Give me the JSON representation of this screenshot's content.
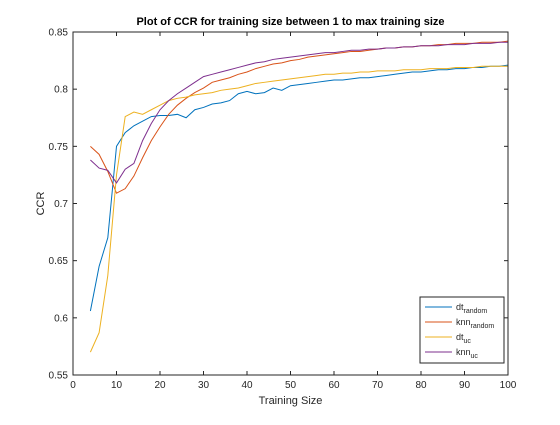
{
  "chart_data": {
    "type": "line",
    "title": "Plot of CCR for training size between 1 to max training size",
    "xlabel": "Training Size",
    "ylabel": "CCR",
    "xlim": [
      0,
      100
    ],
    "ylim": [
      0.55,
      0.85
    ],
    "xticks": [
      0,
      10,
      20,
      30,
      40,
      50,
      60,
      70,
      80,
      90,
      100
    ],
    "yticks": [
      0.55,
      0.6,
      0.65,
      0.7,
      0.75,
      0.8,
      0.85
    ],
    "grid": false,
    "legend_position": "bottom-right",
    "x": [
      4,
      6,
      8,
      10,
      12,
      14,
      16,
      18,
      20,
      22,
      24,
      26,
      28,
      30,
      32,
      34,
      36,
      38,
      40,
      42,
      44,
      46,
      48,
      50,
      52,
      54,
      56,
      58,
      60,
      62,
      64,
      66,
      68,
      70,
      72,
      74,
      76,
      78,
      80,
      82,
      84,
      86,
      88,
      90,
      92,
      94,
      96,
      98,
      100
    ],
    "series": [
      {
        "name": "dt",
        "subscript": "random",
        "color": "#0072BD",
        "values": [
          0.606,
          0.645,
          0.67,
          0.75,
          0.762,
          0.768,
          0.772,
          0.776,
          0.777,
          0.777,
          0.778,
          0.775,
          0.782,
          0.784,
          0.787,
          0.788,
          0.79,
          0.796,
          0.798,
          0.796,
          0.797,
          0.801,
          0.799,
          0.803,
          0.804,
          0.805,
          0.806,
          0.807,
          0.808,
          0.808,
          0.809,
          0.81,
          0.81,
          0.811,
          0.812,
          0.813,
          0.814,
          0.815,
          0.815,
          0.816,
          0.817,
          0.817,
          0.818,
          0.818,
          0.819,
          0.819,
          0.82,
          0.82,
          0.821
        ]
      },
      {
        "name": "knn",
        "subscript": "random",
        "color": "#D95319",
        "values": [
          0.75,
          0.743,
          0.728,
          0.709,
          0.713,
          0.724,
          0.74,
          0.755,
          0.767,
          0.778,
          0.786,
          0.792,
          0.797,
          0.801,
          0.806,
          0.808,
          0.81,
          0.813,
          0.815,
          0.818,
          0.82,
          0.822,
          0.823,
          0.825,
          0.826,
          0.828,
          0.829,
          0.83,
          0.831,
          0.832,
          0.833,
          0.833,
          0.834,
          0.835,
          0.836,
          0.836,
          0.837,
          0.837,
          0.838,
          0.838,
          0.839,
          0.839,
          0.84,
          0.84,
          0.84,
          0.841,
          0.841,
          0.841,
          0.842
        ]
      },
      {
        "name": "dt",
        "subscript": "uc",
        "color": "#EDB120",
        "values": [
          0.57,
          0.587,
          0.637,
          0.725,
          0.776,
          0.78,
          0.778,
          0.782,
          0.786,
          0.79,
          0.792,
          0.793,
          0.795,
          0.796,
          0.797,
          0.799,
          0.8,
          0.801,
          0.803,
          0.805,
          0.806,
          0.807,
          0.808,
          0.809,
          0.81,
          0.811,
          0.812,
          0.813,
          0.813,
          0.814,
          0.814,
          0.815,
          0.815,
          0.816,
          0.816,
          0.816,
          0.817,
          0.817,
          0.817,
          0.818,
          0.818,
          0.818,
          0.819,
          0.819,
          0.819,
          0.82,
          0.82,
          0.82,
          0.82
        ]
      },
      {
        "name": "knn",
        "subscript": "uc",
        "color": "#7E2F8E",
        "values": [
          0.738,
          0.731,
          0.729,
          0.718,
          0.73,
          0.735,
          0.755,
          0.77,
          0.782,
          0.79,
          0.796,
          0.801,
          0.806,
          0.811,
          0.813,
          0.815,
          0.817,
          0.819,
          0.821,
          0.823,
          0.824,
          0.826,
          0.827,
          0.828,
          0.829,
          0.83,
          0.831,
          0.832,
          0.832,
          0.833,
          0.834,
          0.834,
          0.835,
          0.835,
          0.836,
          0.836,
          0.837,
          0.837,
          0.838,
          0.838,
          0.838,
          0.839,
          0.839,
          0.839,
          0.84,
          0.84,
          0.84,
          0.841,
          0.841
        ]
      }
    ]
  }
}
